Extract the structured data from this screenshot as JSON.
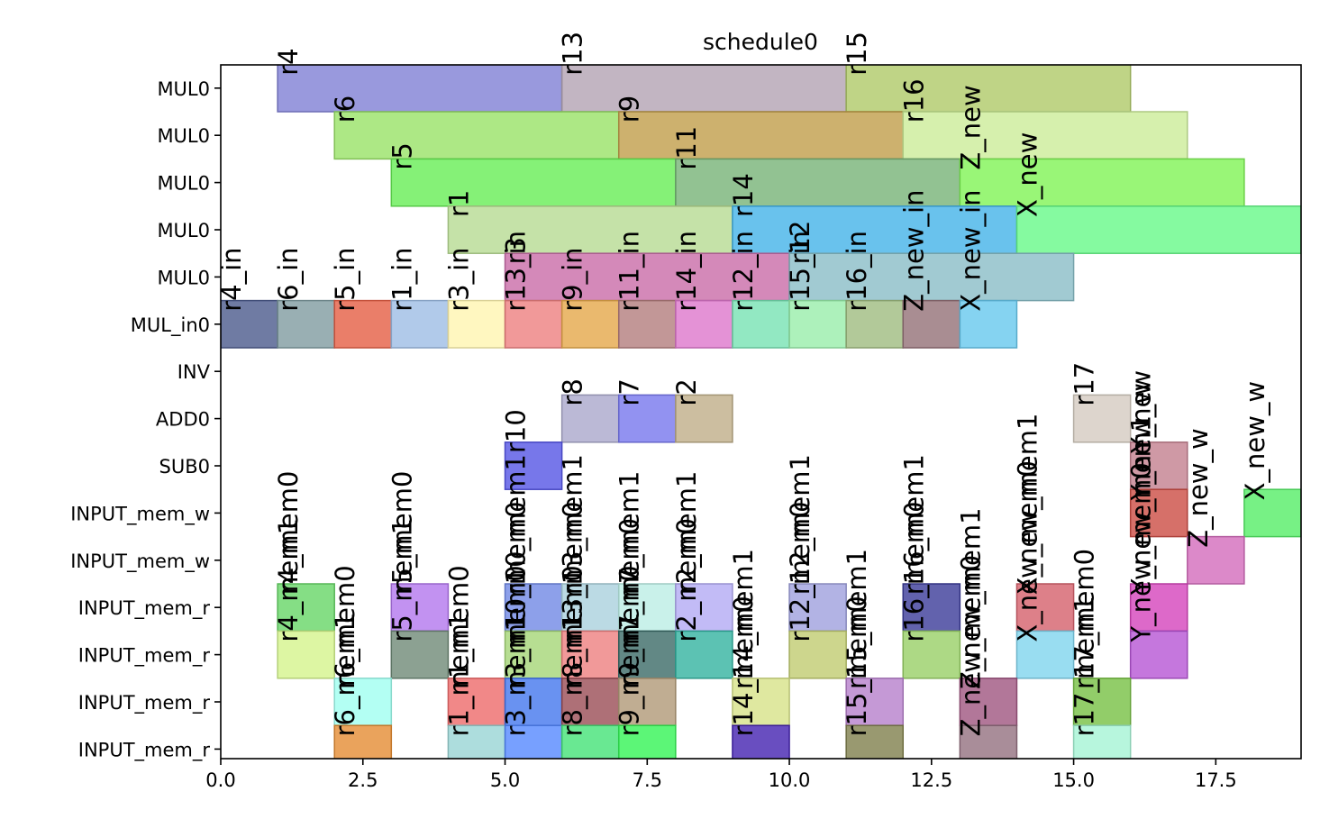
{
  "chart_data": {
    "type": "bar",
    "title": "schedule0",
    "xlabel": "",
    "ylabel": "",
    "xlim": [
      0,
      19
    ],
    "x_ticks": [
      "0.0",
      "2.5",
      "5.0",
      "7.5",
      "10.0",
      "12.5",
      "15.0",
      "17.5"
    ],
    "x_tick_values": [
      0,
      2.5,
      5,
      7.5,
      10,
      12.5,
      15,
      17.5
    ],
    "rows": [
      "MUL0",
      "MUL0",
      "MUL0",
      "MUL0",
      "MUL0",
      "MUL_in0",
      "INV",
      "ADD0",
      "SUB0",
      "INPUT_mem_w",
      "INPUT_mem_w",
      "INPUT_mem_r",
      "INPUT_mem_r",
      "INPUT_mem_r",
      "INPUT_mem_r"
    ],
    "grid": false,
    "bars": [
      {
        "row": 0,
        "start": 1,
        "end": 6,
        "label": "r4",
        "color": "#7f7fd5"
      },
      {
        "row": 0,
        "start": 6,
        "end": 11,
        "label": "r13",
        "color": "#b3a3b3"
      },
      {
        "row": 0,
        "start": 11,
        "end": 16,
        "label": "r15",
        "color": "#afc968"
      },
      {
        "row": 1,
        "start": 2,
        "end": 7,
        "label": "r6",
        "color": "#99e266"
      },
      {
        "row": 1,
        "start": 7,
        "end": 12,
        "label": "r9",
        "color": "#c19d4a"
      },
      {
        "row": 1,
        "start": 12,
        "end": 17,
        "label": "r16",
        "color": "#ccec99"
      },
      {
        "row": 2,
        "start": 3,
        "end": 8,
        "label": "r5",
        "color": "#66ee55"
      },
      {
        "row": 2,
        "start": 8,
        "end": 13,
        "label": "r11",
        "color": "#77b377"
      },
      {
        "row": 2,
        "start": 13,
        "end": 18,
        "label": "Z_new",
        "color": "#7ff455"
      },
      {
        "row": 3,
        "start": 4,
        "end": 9,
        "label": "r1",
        "color": "#b7db92"
      },
      {
        "row": 3,
        "start": 9,
        "end": 14,
        "label": "r14",
        "color": "#44b3e8"
      },
      {
        "row": 3,
        "start": 14,
        "end": 19,
        "label": "X_new",
        "color": "#66f988"
      },
      {
        "row": 4,
        "start": 5,
        "end": 10,
        "label": "r3",
        "color": "#c96ca8"
      },
      {
        "row": 4,
        "start": 10,
        "end": 15,
        "label": "r12",
        "color": "#89bdc7"
      },
      {
        "row": 5,
        "start": 0,
        "end": 1,
        "label": "r4_in",
        "color": "#4b5a8c"
      },
      {
        "row": 5,
        "start": 1,
        "end": 2,
        "label": "r6_in",
        "color": "#7f9ba0"
      },
      {
        "row": 5,
        "start": 2,
        "end": 3,
        "label": "r5_in",
        "color": "#e55e44"
      },
      {
        "row": 5,
        "start": 3,
        "end": 4,
        "label": "r1_in",
        "color": "#9ebde5"
      },
      {
        "row": 5,
        "start": 4,
        "end": 5,
        "label": "r3_in",
        "color": "#fff5b0"
      },
      {
        "row": 5,
        "start": 5,
        "end": 6,
        "label": "r13_in",
        "color": "#ee8080"
      },
      {
        "row": 5,
        "start": 6,
        "end": 7,
        "label": "r9_in",
        "color": "#e5a84a"
      },
      {
        "row": 5,
        "start": 7,
        "end": 8,
        "label": "r11_in",
        "color": "#b37d7d"
      },
      {
        "row": 5,
        "start": 8,
        "end": 9,
        "label": "r14_in",
        "color": "#dd77cc"
      },
      {
        "row": 5,
        "start": 9,
        "end": 10,
        "label": "r12_in",
        "color": "#77e2b3"
      },
      {
        "row": 5,
        "start": 10,
        "end": 11,
        "label": "r15_in",
        "color": "#99eeaa"
      },
      {
        "row": 5,
        "start": 11,
        "end": 12,
        "label": "r16_in",
        "color": "#9fbb80"
      },
      {
        "row": 5,
        "start": 12,
        "end": 13,
        "label": "Z_new_in",
        "color": "#937077"
      },
      {
        "row": 5,
        "start": 13,
        "end": 14,
        "label": "X_new_in",
        "color": "#66c8ee"
      },
      {
        "row": 7,
        "start": 6,
        "end": 7,
        "label": "r8",
        "color": "#aaa8cc"
      },
      {
        "row": 7,
        "start": 7,
        "end": 8,
        "label": "r7",
        "color": "#7777ee"
      },
      {
        "row": 7,
        "start": 8,
        "end": 9,
        "label": "r2",
        "color": "#bfae88"
      },
      {
        "row": 7,
        "start": 15,
        "end": 16,
        "label": "r17",
        "color": "#d4cbc0"
      },
      {
        "row": 8,
        "start": 5,
        "end": 6,
        "label": "r10",
        "color": "#5555e5"
      },
      {
        "row": 8,
        "start": 16,
        "end": 17,
        "label": "Y_new",
        "color": "#c3808f"
      },
      {
        "row": 9,
        "start": 16,
        "end": 17,
        "label": "Y_new_w",
        "color": "#cc4c44"
      },
      {
        "row": 9,
        "start": 18,
        "end": 19,
        "label": "X_new_w",
        "color": "#55ee66"
      },
      {
        "row": 10,
        "start": 17,
        "end": 18,
        "label": "Z_new_w",
        "color": "#d36cbb"
      },
      {
        "row": 11,
        "start": 1,
        "end": 2,
        "label": "r4_mem0",
        "color": "#66d666"
      },
      {
        "row": 11,
        "start": 3,
        "end": 4,
        "label": "r5_mem0",
        "color": "#b377ee"
      },
      {
        "row": 11,
        "start": 5,
        "end": 6,
        "label": "r10_mem1",
        "color": "#7088e5"
      },
      {
        "row": 11,
        "start": 6,
        "end": 7,
        "label": "r13_mem1",
        "color": "#aad1dd"
      },
      {
        "row": 11,
        "start": 7,
        "end": 8,
        "label": "r7_mem1",
        "color": "#bbeee5"
      },
      {
        "row": 11,
        "start": 8,
        "end": 9,
        "label": "r2_mem1",
        "color": "#b3aaf4"
      },
      {
        "row": 11,
        "start": 10,
        "end": 11,
        "label": "r12_mem1",
        "color": "#9fa0dd"
      },
      {
        "row": 11,
        "start": 12,
        "end": 13,
        "label": "r16_mem1",
        "color": "#3b3b99"
      },
      {
        "row": 11,
        "start": 14,
        "end": 15,
        "label": "X_new_mem1",
        "color": "#d5606c"
      },
      {
        "row": 11,
        "start": 16,
        "end": 17,
        "label": "Y_new_mem1",
        "color": "#d544bb"
      },
      {
        "row": 12,
        "start": 1,
        "end": 2,
        "label": "r4_mem1",
        "color": "#d4f48c"
      },
      {
        "row": 12,
        "start": 3,
        "end": 4,
        "label": "r5_mem1",
        "color": "#6f8a77"
      },
      {
        "row": 12,
        "start": 5,
        "end": 6,
        "label": "r10_mem0",
        "color": "#a5d677"
      },
      {
        "row": 12,
        "start": 6,
        "end": 7,
        "label": "r13_mem0",
        "color": "#ee8080"
      },
      {
        "row": 12,
        "start": 7,
        "end": 8,
        "label": "r7_mem0",
        "color": "#3b6a66"
      },
      {
        "row": 12,
        "start": 8,
        "end": 9,
        "label": "r2_mem0",
        "color": "#33b3a0"
      },
      {
        "row": 12,
        "start": 10,
        "end": 11,
        "label": "r12_mem0",
        "color": "#c1cc70"
      },
      {
        "row": 12,
        "start": 12,
        "end": 13,
        "label": "r16_mem0",
        "color": "#99d066"
      },
      {
        "row": 12,
        "start": 14,
        "end": 15,
        "label": "X_new_mem0",
        "color": "#80d4ee"
      },
      {
        "row": 12,
        "start": 16,
        "end": 17,
        "label": "Y_new_mem0",
        "color": "#b655d5"
      },
      {
        "row": 13,
        "start": 2,
        "end": 3,
        "label": "r6_mem0",
        "color": "#a0fff0"
      },
      {
        "row": 13,
        "start": 4,
        "end": 5,
        "label": "r1_mem0",
        "color": "#ee6a6a"
      },
      {
        "row": 13,
        "start": 5,
        "end": 6,
        "label": "r3_mem0",
        "color": "#4477ee"
      },
      {
        "row": 13,
        "start": 6,
        "end": 7,
        "label": "r8_mem0",
        "color": "#9a4c55"
      },
      {
        "row": 13,
        "start": 7,
        "end": 8,
        "label": "r9_mem0",
        "color": "#b09977"
      },
      {
        "row": 13,
        "start": 9,
        "end": 10,
        "label": "r14_mem1",
        "color": "#d7e288"
      },
      {
        "row": 13,
        "start": 11,
        "end": 12,
        "label": "r15_mem1",
        "color": "#b780cc"
      },
      {
        "row": 13,
        "start": 13,
        "end": 14,
        "label": "Z_new_mem1",
        "color": "#9f5580"
      },
      {
        "row": 13,
        "start": 15,
        "end": 16,
        "label": "r17_mem0",
        "color": "#77c044"
      },
      {
        "row": 14,
        "start": 2,
        "end": 3,
        "label": "r6_mem1",
        "color": "#e58c33"
      },
      {
        "row": 14,
        "start": 4,
        "end": 5,
        "label": "r1_mem1",
        "color": "#99d4d4"
      },
      {
        "row": 14,
        "start": 5,
        "end": 6,
        "label": "r3_mem1",
        "color": "#5588ff"
      },
      {
        "row": 14,
        "start": 6,
        "end": 7,
        "label": "r8_mem1",
        "color": "#44e277"
      },
      {
        "row": 14,
        "start": 7,
        "end": 8,
        "label": "r9_mem1",
        "color": "#33f455"
      },
      {
        "row": 14,
        "start": 9,
        "end": 10,
        "label": "r14_mem0",
        "color": "#4422b0"
      },
      {
        "row": 14,
        "start": 11,
        "end": 12,
        "label": "r15_mem0",
        "color": "#80804c"
      },
      {
        "row": 14,
        "start": 13,
        "end": 14,
        "label": "Z_new_mem0",
        "color": "#937080"
      },
      {
        "row": 14,
        "start": 15,
        "end": 16,
        "label": "r17_mem1",
        "color": "#a5f4d4"
      }
    ]
  }
}
